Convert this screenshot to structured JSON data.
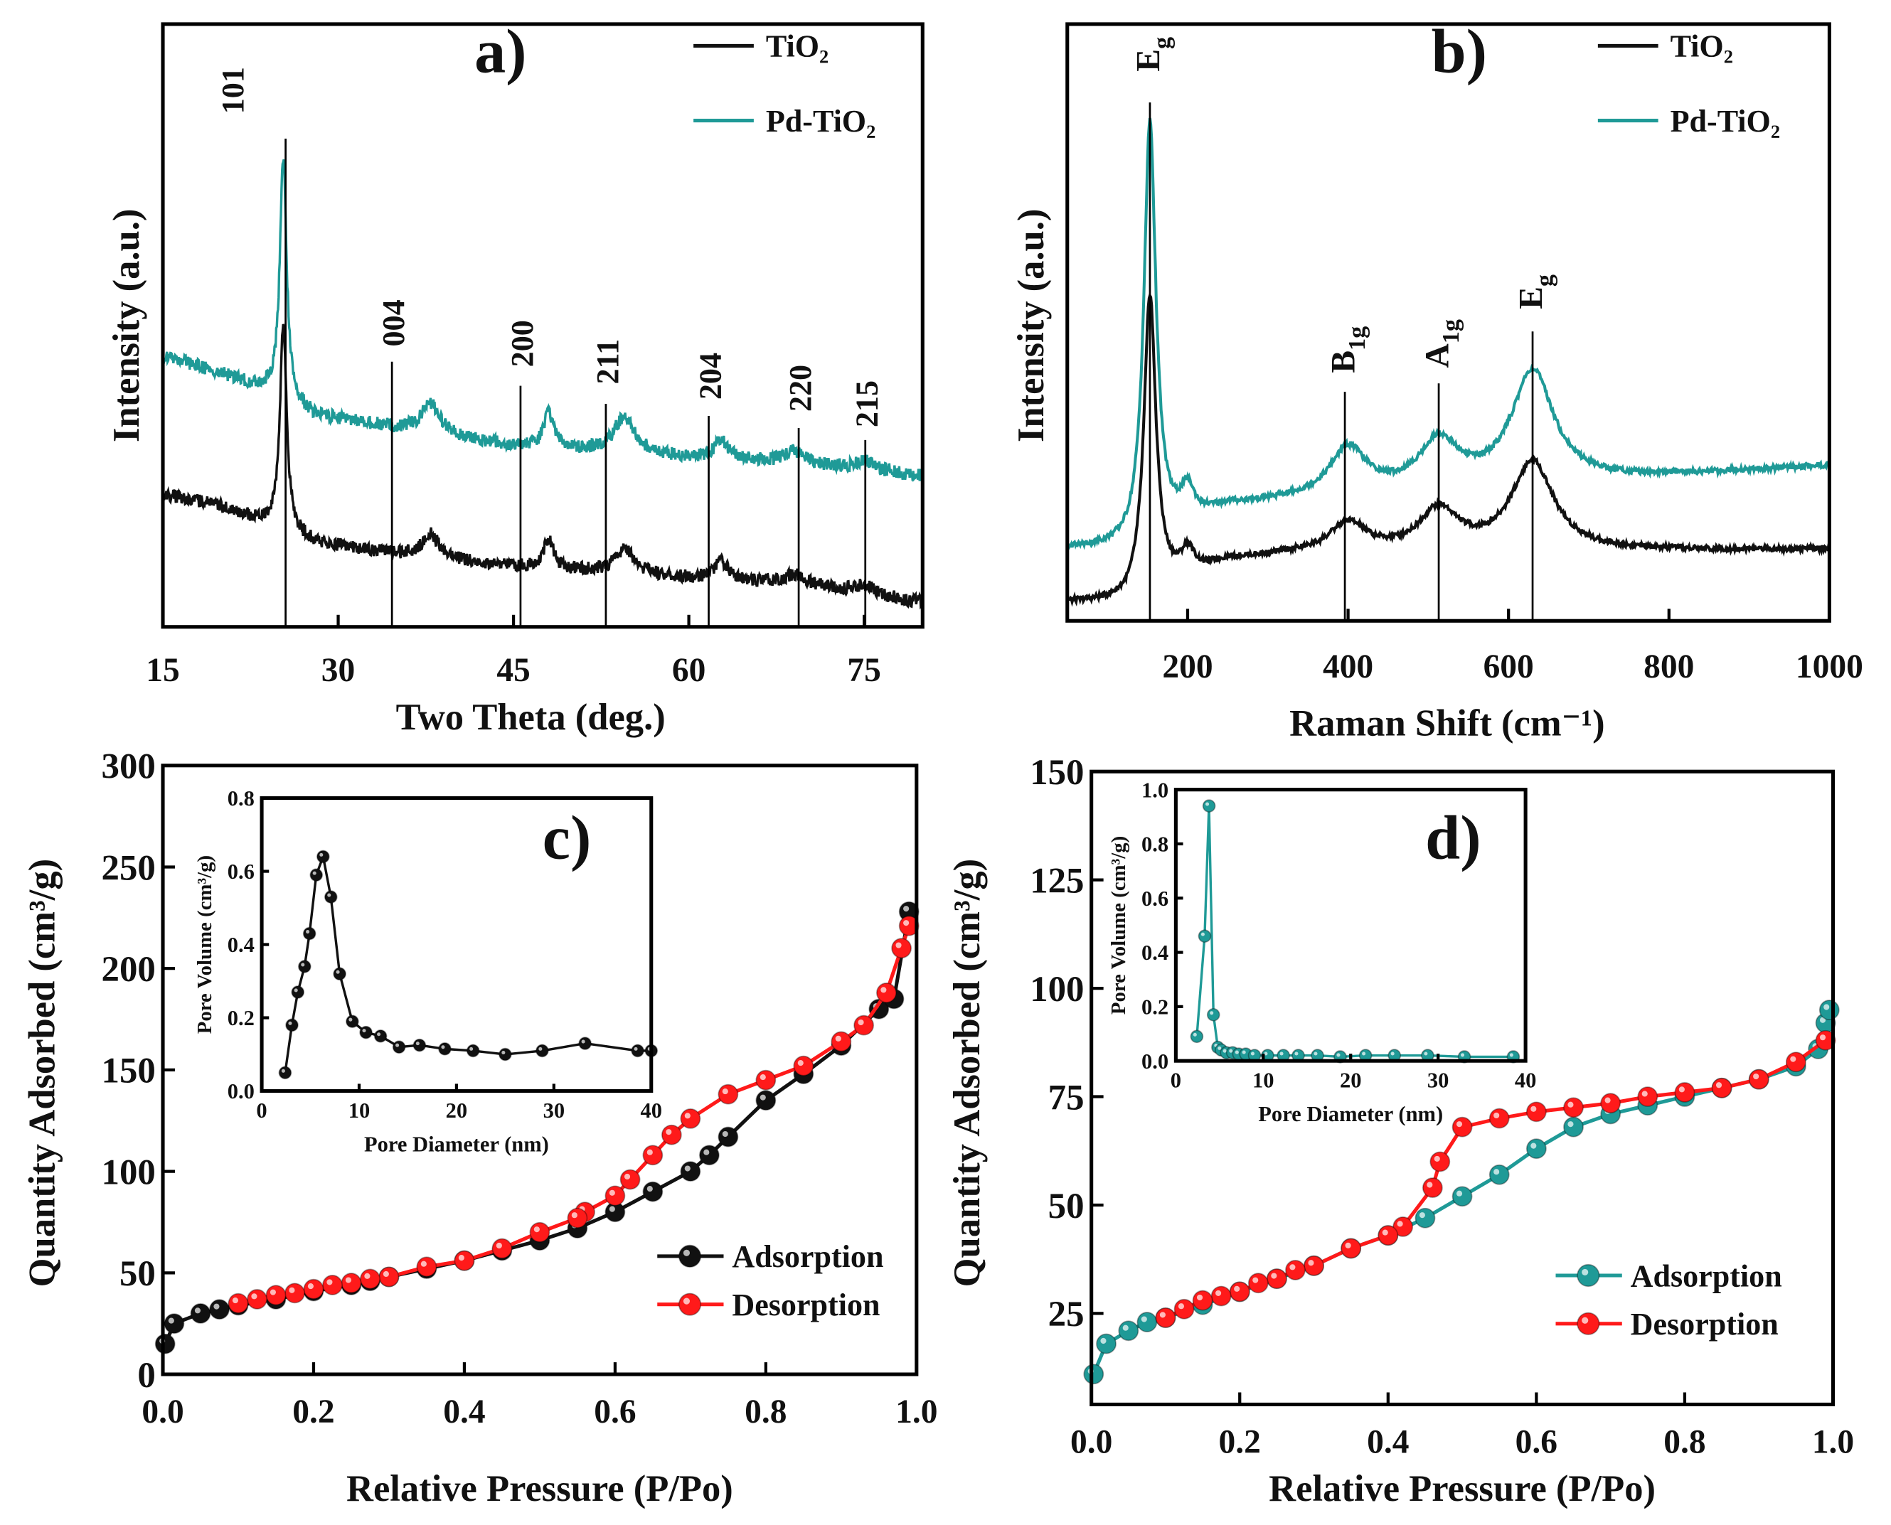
{
  "colors": {
    "tio2": "#111111",
    "pd_tio2": "#1f9a97",
    "adsorption_c": "#111111",
    "desorption": "#ff1a1a",
    "adsorption_d": "#1f9a97"
  },
  "chart_data": [
    {
      "id": "a",
      "type": "line",
      "panel_label": "a)",
      "xlabel": "Two Theta (deg.)",
      "ylabel": "Intensity (a.u.)",
      "xlim": [
        15,
        80
      ],
      "ylim": [
        0,
        100
      ],
      "xticks": [
        15,
        30,
        45,
        60,
        75
      ],
      "legend": {
        "placement": "top-right",
        "entries": [
          "TiO₂",
          "Pd-TiO₂"
        ]
      },
      "reflections": [
        {
          "label": "101",
          "two_theta": 25.5
        },
        {
          "label": "004",
          "two_theta": 34.6
        },
        {
          "label": "200",
          "two_theta": 45.6
        },
        {
          "label": "211",
          "two_theta": 52.9
        },
        {
          "label": "204",
          "two_theta": 61.7
        },
        {
          "label": "220",
          "two_theta": 69.4
        },
        {
          "label": "215",
          "two_theta": 75.1
        }
      ],
      "series": [
        {
          "name": "TiO₂",
          "baseline": [
            [
              15,
              22
            ],
            [
              20,
              20
            ],
            [
              24,
              17
            ],
            [
              28,
              14
            ],
            [
              35,
              12
            ],
            [
              45,
              10
            ],
            [
              60,
              8
            ],
            [
              70,
              7
            ],
            [
              80,
              4
            ]
          ],
          "peaks": [
            [
              25.3,
              34,
              0.35
            ],
            [
              37.9,
              4,
              0.9
            ],
            [
              48.0,
              5,
              0.5
            ],
            [
              54.5,
              4,
              1.1
            ],
            [
              62.8,
              3,
              0.8
            ],
            [
              69.0,
              1.5,
              1
            ],
            [
              75.0,
              1.5,
              1
            ]
          ]
        },
        {
          "name": "Pd-TiO₂",
          "baseline": [
            [
              15,
              45
            ],
            [
              20,
              42
            ],
            [
              24,
              39
            ],
            [
              28,
              35
            ],
            [
              35,
              33
            ],
            [
              45,
              30
            ],
            [
              60,
              28
            ],
            [
              70,
              27
            ],
            [
              80,
              25
            ]
          ],
          "peaks": [
            [
              25.3,
              40,
              0.35
            ],
            [
              37.9,
              5,
              0.9
            ],
            [
              48.0,
              6,
              0.5
            ],
            [
              54.5,
              6,
              1.1
            ],
            [
              62.8,
              3,
              0.8
            ],
            [
              69.0,
              2,
              1
            ],
            [
              75.0,
              1.5,
              1
            ]
          ]
        }
      ]
    },
    {
      "id": "b",
      "type": "line",
      "panel_label": "b)",
      "xlabel": "Raman Shift (cm⁻¹)",
      "ylabel": "Intensity (a.u.)",
      "xlim": [
        50,
        1000
      ],
      "ylim": [
        0,
        100
      ],
      "xticks": [
        200,
        400,
        600,
        800,
        1000
      ],
      "legend": {
        "placement": "top-right",
        "entries": [
          "TiO₂",
          "Pd-TiO₂"
        ]
      },
      "modes": [
        {
          "main": "E",
          "sub": "g",
          "shift": 153
        },
        {
          "main": "B",
          "sub": "1g",
          "shift": 396
        },
        {
          "main": "A",
          "sub": "1g",
          "shift": 513
        },
        {
          "main": "E",
          "sub": "g",
          "shift": 630
        }
      ],
      "series": [
        {
          "name": "TiO₂",
          "baseline": [
            [
              50,
              3
            ],
            [
              125,
              3
            ],
            [
              250,
              10
            ],
            [
              330,
              11
            ],
            [
              1000,
              12
            ]
          ],
          "peaks": [
            [
              153,
              50,
              9
            ],
            [
              200,
              4,
              10
            ],
            [
              400,
              5,
              28
            ],
            [
              513,
              7,
              30
            ],
            [
              630,
              15,
              32
            ]
          ]
        },
        {
          "name": "Pd-TiO₂",
          "baseline": [
            [
              50,
              12
            ],
            [
              125,
              12
            ],
            [
              250,
              19
            ],
            [
              330,
              20
            ],
            [
              1000,
              26
            ]
          ],
          "peaks": [
            [
              153,
              70,
              9
            ],
            [
              200,
              5,
              10
            ],
            [
              400,
              8,
              28
            ],
            [
              513,
              8,
              30
            ],
            [
              630,
              19,
              32
            ]
          ]
        }
      ]
    },
    {
      "id": "c",
      "type": "scatter",
      "panel_label": "c)",
      "xlabel": "Relative Pressure (P/Po)",
      "ylabel": "Quantity Adsorbed (cm³/g)",
      "xlim": [
        0,
        1.0
      ],
      "ylim": [
        0,
        300
      ],
      "xticks": [
        "0.0",
        "0.2",
        "0.4",
        "0.6",
        "0.8",
        "1.0"
      ],
      "yticks": [
        "0",
        "50",
        "100",
        "150",
        "200",
        "250",
        "300"
      ],
      "legend": {
        "placement": "bottom-right",
        "entries": [
          "Adsorption",
          "Desorption"
        ]
      },
      "series": [
        {
          "name": "Adsorption",
          "points": [
            [
              0.003,
              15
            ],
            [
              0.015,
              25
            ],
            [
              0.05,
              30
            ],
            [
              0.075,
              32
            ],
            [
              0.1,
              34
            ],
            [
              0.15,
              37
            ],
            [
              0.2,
              41
            ],
            [
              0.25,
              44
            ],
            [
              0.275,
              46
            ],
            [
              0.3,
              48
            ],
            [
              0.35,
              52
            ],
            [
              0.4,
              56
            ],
            [
              0.45,
              61
            ],
            [
              0.5,
              66
            ],
            [
              0.55,
              72
            ],
            [
              0.6,
              80
            ],
            [
              0.65,
              90
            ],
            [
              0.7,
              100
            ],
            [
              0.725,
              108
            ],
            [
              0.75,
              117
            ],
            [
              0.8,
              135
            ],
            [
              0.85,
              148
            ],
            [
              0.9,
              162
            ],
            [
              0.95,
              180
            ],
            [
              0.97,
              185
            ],
            [
              0.99,
              228
            ]
          ]
        },
        {
          "name": "Desorption",
          "points": [
            [
              0.99,
              221
            ],
            [
              0.98,
              210
            ],
            [
              0.96,
              188
            ],
            [
              0.93,
              172
            ],
            [
              0.9,
              164
            ],
            [
              0.85,
              152
            ],
            [
              0.8,
              145
            ],
            [
              0.75,
              138
            ],
            [
              0.7,
              126
            ],
            [
              0.675,
              118
            ],
            [
              0.65,
              108
            ],
            [
              0.62,
              96
            ],
            [
              0.6,
              88
            ],
            [
              0.56,
              80
            ],
            [
              0.55,
              77
            ],
            [
              0.5,
              70
            ],
            [
              0.45,
              62
            ],
            [
              0.4,
              56
            ],
            [
              0.35,
              53
            ],
            [
              0.3,
              48
            ],
            [
              0.275,
              47
            ],
            [
              0.25,
              45
            ],
            [
              0.225,
              44
            ],
            [
              0.2,
              42
            ],
            [
              0.175,
              40
            ],
            [
              0.15,
              39
            ],
            [
              0.125,
              37
            ],
            [
              0.1,
              35
            ]
          ]
        }
      ],
      "inset": {
        "xlabel": "Pore Diameter (nm)",
        "ylabel": "Pore Volume (cm³/g)",
        "xlim": [
          0,
          40
        ],
        "ylim": [
          0,
          0.8
        ],
        "xticks": [
          "0",
          "10",
          "20",
          "30",
          "40"
        ],
        "yticks": [
          "0.0",
          "0.2",
          "0.4",
          "0.6",
          "0.8"
        ],
        "points": [
          [
            2.4,
            0.05
          ],
          [
            3.1,
            0.18
          ],
          [
            3.7,
            0.27
          ],
          [
            4.4,
            0.34
          ],
          [
            4.9,
            0.43
          ],
          [
            5.6,
            0.59
          ],
          [
            6.3,
            0.64
          ],
          [
            7.1,
            0.53
          ],
          [
            8.0,
            0.32
          ],
          [
            9.3,
            0.19
          ],
          [
            10.7,
            0.16
          ],
          [
            12.2,
            0.15
          ],
          [
            14.1,
            0.12
          ],
          [
            16.2,
            0.125
          ],
          [
            18.8,
            0.115
          ],
          [
            21.7,
            0.11
          ],
          [
            25.0,
            0.1
          ],
          [
            28.8,
            0.11
          ],
          [
            33.2,
            0.13
          ],
          [
            38.6,
            0.11
          ],
          [
            40,
            0.11
          ]
        ]
      }
    },
    {
      "id": "d",
      "type": "scatter",
      "panel_label": "d)",
      "xlabel": "Relative Pressure (P/Po)",
      "ylabel": "Quantity Adsorbed (cm³/g)",
      "xlim": [
        0,
        1.0
      ],
      "ylim": [
        4,
        150
      ],
      "xticks": [
        "0.0",
        "0.2",
        "0.4",
        "0.6",
        "0.8",
        "1.0"
      ],
      "yticks": [
        "25",
        "50",
        "75",
        "100",
        "125",
        "150"
      ],
      "legend": {
        "placement": "bottom-right",
        "entries": [
          "Adsorption",
          "Desorption"
        ]
      },
      "series": [
        {
          "name": "Adsorption",
          "points": [
            [
              0.003,
              11
            ],
            [
              0.02,
              18
            ],
            [
              0.05,
              21
            ],
            [
              0.075,
              23
            ],
            [
              0.1,
              24
            ],
            [
              0.15,
              27
            ],
            [
              0.2,
              30
            ],
            [
              0.25,
              33
            ],
            [
              0.3,
              36
            ],
            [
              0.35,
              40
            ],
            [
              0.4,
              43
            ],
            [
              0.45,
              47
            ],
            [
              0.5,
              52
            ],
            [
              0.55,
              57
            ],
            [
              0.6,
              63
            ],
            [
              0.65,
              68
            ],
            [
              0.7,
              71
            ],
            [
              0.75,
              73
            ],
            [
              0.8,
              75
            ],
            [
              0.85,
              77
            ],
            [
              0.9,
              79
            ],
            [
              0.95,
              82
            ],
            [
              0.98,
              86
            ],
            [
              0.99,
              92
            ],
            [
              0.995,
              95
            ]
          ]
        },
        {
          "name": "Desorption",
          "points": [
            [
              0.99,
              88
            ],
            [
              0.95,
              83
            ],
            [
              0.9,
              79
            ],
            [
              0.85,
              77
            ],
            [
              0.8,
              76
            ],
            [
              0.75,
              75
            ],
            [
              0.7,
              73.5
            ],
            [
              0.65,
              72.5
            ],
            [
              0.6,
              71.5
            ],
            [
              0.55,
              70
            ],
            [
              0.5,
              68
            ],
            [
              0.47,
              60
            ],
            [
              0.46,
              54
            ],
            [
              0.42,
              45
            ],
            [
              0.4,
              43
            ],
            [
              0.35,
              40
            ],
            [
              0.3,
              36
            ],
            [
              0.275,
              35
            ],
            [
              0.25,
              33
            ],
            [
              0.225,
              32
            ],
            [
              0.2,
              30
            ],
            [
              0.175,
              29
            ],
            [
              0.15,
              28
            ],
            [
              0.125,
              26
            ],
            [
              0.1,
              24
            ]
          ]
        }
      ],
      "inset": {
        "xlabel": "Pore Diameter (nm)",
        "ylabel": "Pore Volume (cm³/g)",
        "xlim": [
          0,
          40
        ],
        "ylim": [
          0,
          1.0
        ],
        "xticks": [
          "0",
          "10",
          "20",
          "30",
          "40"
        ],
        "yticks": [
          "0.0",
          "0.2",
          "0.4",
          "0.6",
          "0.8",
          "1.0"
        ],
        "points": [
          [
            2.4,
            0.09
          ],
          [
            3.3,
            0.46
          ],
          [
            3.8,
            0.94
          ],
          [
            4.3,
            0.17
          ],
          [
            4.8,
            0.05
          ],
          [
            5.2,
            0.04
          ],
          [
            5.8,
            0.03
          ],
          [
            6.5,
            0.03
          ],
          [
            7.2,
            0.025
          ],
          [
            8,
            0.025
          ],
          [
            9,
            0.02
          ],
          [
            10.5,
            0.02
          ],
          [
            12.3,
            0.02
          ],
          [
            14,
            0.02
          ],
          [
            16.2,
            0.02
          ],
          [
            18.8,
            0.015
          ],
          [
            21.7,
            0.02
          ],
          [
            25,
            0.02
          ],
          [
            28.8,
            0.02
          ],
          [
            33,
            0.015
          ],
          [
            38.6,
            0.015
          ]
        ]
      }
    }
  ]
}
